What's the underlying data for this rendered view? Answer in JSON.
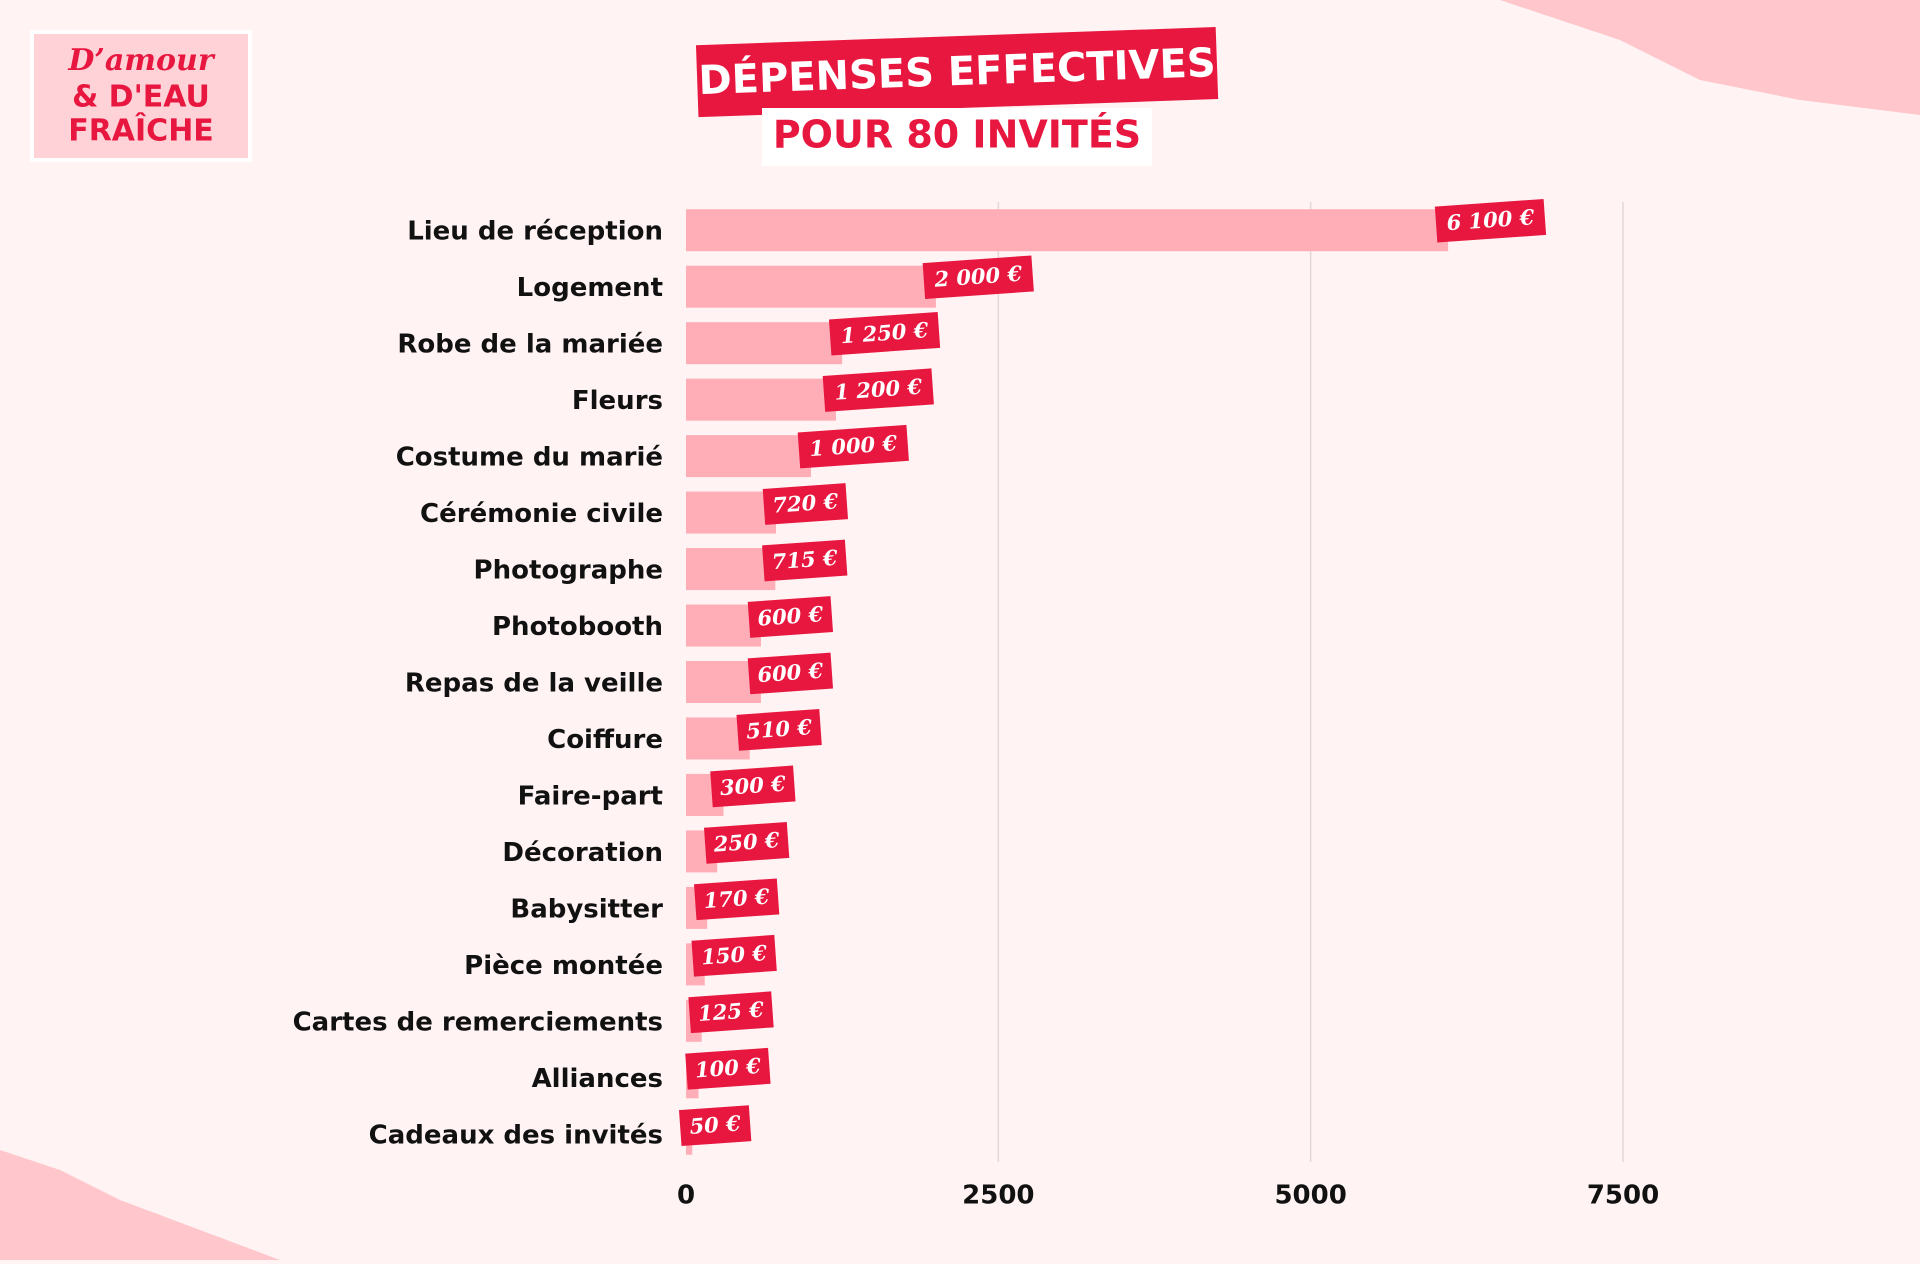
{
  "logo": [
    "D’amour",
    "& D'EAU",
    "FRAÎCHE"
  ],
  "chart_data": {
    "type": "bar",
    "orientation": "horizontal",
    "title": "DÉPENSES EFFECTIVES",
    "subtitle": "POUR 80 INVITÉS",
    "categories": [
      "Lieu de réception",
      "Logement",
      "Robe de la mariée",
      "Fleurs",
      "Costume du marié",
      "Cérémonie civile",
      "Photographe",
      "Photobooth",
      "Repas de la veille",
      "Coiffure",
      "Faire-part",
      "Décoration",
      "Babysitter",
      "Pièce montée",
      "Cartes de remerciements",
      "Alliances",
      "Cadeaux des invités"
    ],
    "values": [
      6100,
      2000,
      1250,
      1200,
      1000,
      720,
      715,
      600,
      600,
      510,
      300,
      250,
      170,
      150,
      125,
      100,
      50
    ],
    "value_labels": [
      "6 100 €",
      "2 000 €",
      "1 250 €",
      "1 200 €",
      "1 000 €",
      "720 €",
      "715 €",
      "600 €",
      "600 €",
      "510 €",
      "300 €",
      "250 €",
      "170 €",
      "150 €",
      "125 €",
      "100 €",
      "50 €"
    ],
    "color": "#ffadb6",
    "label_color": "#e8173f",
    "xlim": [
      0,
      7500
    ],
    "xticks": [
      0,
      2500,
      5000,
      7500
    ],
    "grid": true
  }
}
